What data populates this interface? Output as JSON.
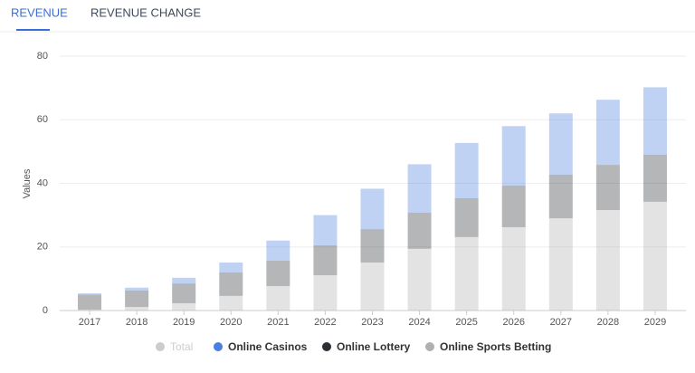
{
  "tabs": [
    "REVENUE",
    "REVENUE CHANGE"
  ],
  "chart_data": {
    "type": "stacked_bar",
    "y_label": "Values",
    "categories": [
      "2017",
      "2018",
      "2019",
      "2020",
      "2021",
      "2022",
      "2023",
      "2024",
      "2025",
      "2026",
      "2027",
      "2028",
      "2029"
    ],
    "series": [
      {
        "name": "Online Sports Betting",
        "color": "#b0b0b0",
        "values": [
          0.3,
          1.1,
          2.3,
          4.6,
          7.7,
          11.1,
          15.1,
          19.4,
          23.1,
          26.2,
          29.0,
          31.6,
          34.2
        ]
      },
      {
        "name": "Online Lottery",
        "color": "#2b2f33",
        "values": [
          4.7,
          5.2,
          6.2,
          7.4,
          8.0,
          9.4,
          10.5,
          11.4,
          12.2,
          13.1,
          13.7,
          14.2,
          14.8
        ]
      },
      {
        "name": "Online Casinos",
        "color": "#4a7ee0",
        "values": [
          0.4,
          0.9,
          1.8,
          3.1,
          6.3,
          9.5,
          12.7,
          15.2,
          17.4,
          18.7,
          19.3,
          20.5,
          21.2
        ]
      }
    ],
    "hidden_series": [
      {
        "name": "Total",
        "color": "#cccccc"
      }
    ],
    "legend_order": [
      "Total",
      "Online Casinos",
      "Online Lottery",
      "Online Sports Betting"
    ],
    "bar_opacity": 0.35,
    "ylim": [
      0,
      80
    ],
    "yticks": [
      0,
      20,
      40,
      60,
      80
    ],
    "grid": true
  }
}
